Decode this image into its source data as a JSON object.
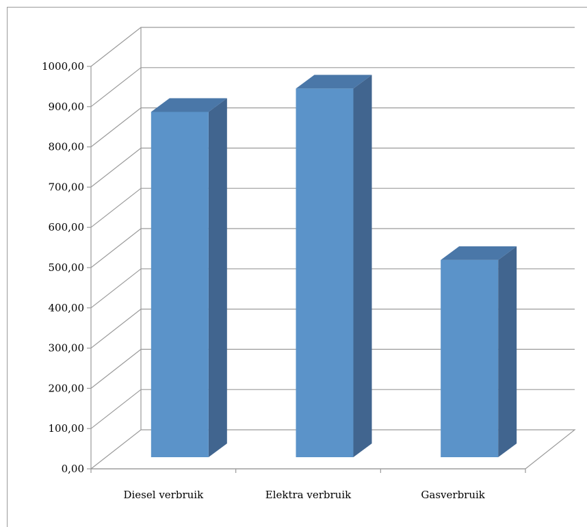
{
  "chart_data": {
    "type": "bar",
    "style": "3d-column",
    "categories": [
      "Diesel verbruik",
      "Elektra verbruik",
      "Gasverbruik"
    ],
    "values": [
      858,
      916,
      490
    ],
    "ylim": [
      0,
      1000
    ],
    "yticks": [
      "0,00",
      "100,00",
      "200,00",
      "300,00",
      "400,00",
      "500,00",
      "600,00",
      "700,00",
      "800,00",
      "900,00",
      "1000,00"
    ],
    "grid": true,
    "legend": "none",
    "colors": {
      "front": "#5b93c9",
      "side": "#41658f",
      "top": "#4a77a8",
      "grid": "#9a9a9a"
    }
  }
}
